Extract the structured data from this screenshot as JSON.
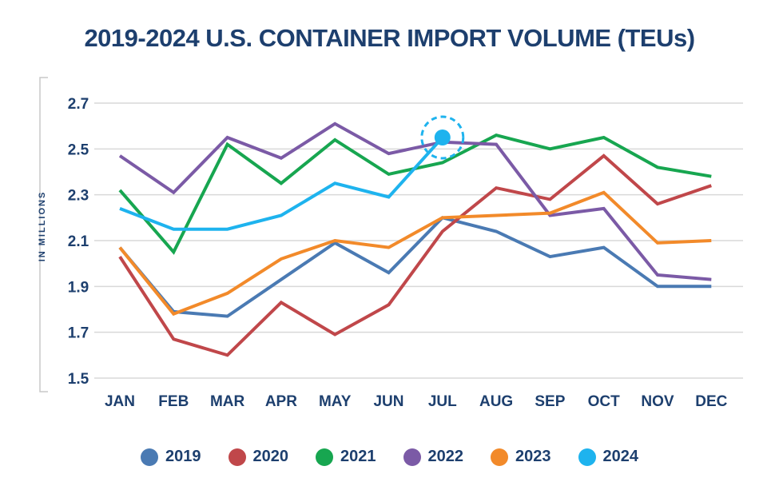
{
  "chart_data": {
    "type": "line",
    "title": "2019-2024 U.S. CONTAINER IMPORT VOLUME (TEUs)",
    "ylabel": "IN MILLIONS",
    "xlabel": "",
    "categories": [
      "JAN",
      "FEB",
      "MAR",
      "APR",
      "MAY",
      "JUN",
      "JUL",
      "AUG",
      "SEP",
      "OCT",
      "NOV",
      "DEC"
    ],
    "yticks": [
      "2.7",
      "2.5",
      "2.3",
      "2.1",
      "1.9",
      "1.7",
      "1.5"
    ],
    "ylim": [
      1.5,
      2.7
    ],
    "grid": true,
    "legend_position": "bottom",
    "series": [
      {
        "name": "2019",
        "color": "#4a7ab3",
        "values": [
          2.07,
          1.79,
          1.77,
          1.93,
          2.09,
          1.96,
          2.2,
          2.14,
          2.03,
          2.07,
          1.9,
          1.9
        ]
      },
      {
        "name": "2020",
        "color": "#c0474a",
        "values": [
          2.03,
          1.67,
          1.6,
          1.83,
          1.69,
          1.82,
          2.14,
          2.33,
          2.28,
          2.47,
          2.26,
          2.34
        ]
      },
      {
        "name": "2021",
        "color": "#17a650",
        "values": [
          2.32,
          2.05,
          2.52,
          2.35,
          2.54,
          2.39,
          2.44,
          2.56,
          2.5,
          2.55,
          2.42,
          2.38
        ]
      },
      {
        "name": "2022",
        "color": "#7b5aa6",
        "values": [
          2.47,
          2.31,
          2.55,
          2.46,
          2.61,
          2.48,
          2.53,
          2.52,
          2.21,
          2.24,
          1.95,
          1.93
        ]
      },
      {
        "name": "2023",
        "color": "#f28a2a",
        "values": [
          2.07,
          1.78,
          1.87,
          2.02,
          2.1,
          2.07,
          2.2,
          2.21,
          2.22,
          2.31,
          2.09,
          2.1
        ]
      },
      {
        "name": "2024",
        "color": "#1eb3ee",
        "values": [
          2.24,
          2.15,
          2.15,
          2.21,
          2.35,
          2.29,
          2.55,
          null,
          null,
          null,
          null,
          null
        ],
        "highlight_point": "JUL"
      }
    ]
  }
}
